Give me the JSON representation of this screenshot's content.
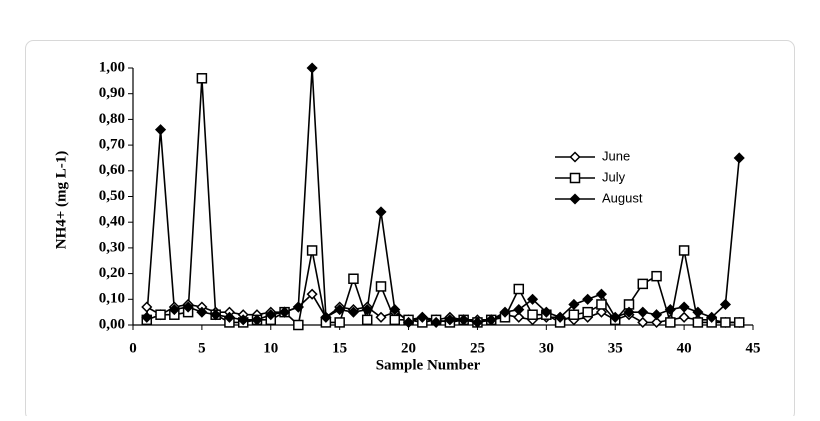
{
  "chart_data": {
    "type": "line",
    "xlabel": "Sample Number",
    "ylabel": "NH4+ (mg L-1)",
    "x": [
      1,
      2,
      3,
      4,
      5,
      6,
      7,
      8,
      9,
      10,
      11,
      12,
      13,
      14,
      15,
      16,
      17,
      18,
      19,
      20,
      21,
      22,
      23,
      24,
      25,
      26,
      27,
      28,
      29,
      30,
      31,
      32,
      33,
      34,
      35,
      36,
      37,
      38,
      39,
      40,
      41,
      42,
      43,
      44
    ],
    "series": [
      {
        "name": "June",
        "color": "#000000",
        "marker": "diamond-open",
        "values": [
          0.07,
          0.04,
          0.07,
          0.08,
          0.07,
          0.05,
          0.05,
          0.04,
          0.04,
          0.05,
          0.05,
          0.07,
          0.12,
          0.03,
          0.07,
          0.06,
          0.07,
          0.03,
          0.05,
          0.02,
          0.03,
          0.02,
          0.03,
          0.02,
          0.02,
          0.02,
          0.04,
          0.03,
          0.02,
          0.03,
          0.03,
          0.02,
          0.03,
          0.05,
          0.02,
          0.04,
          0.01,
          0.01,
          0.02,
          0.03,
          0.02,
          0.02,
          0.01,
          0.01
        ]
      },
      {
        "name": "July",
        "color": "#000000",
        "marker": "square",
        "values": [
          0.02,
          0.04,
          0.04,
          0.05,
          0.96,
          0.04,
          0.01,
          0.01,
          0.02,
          0.02,
          0.05,
          0.0,
          0.29,
          0.01,
          0.01,
          0.18,
          0.02,
          0.15,
          0.02,
          0.02,
          0.01,
          0.02,
          0.01,
          0.02,
          0.01,
          0.02,
          0.03,
          0.14,
          0.04,
          0.04,
          0.01,
          0.04,
          0.05,
          0.08,
          0.02,
          0.08,
          0.16,
          0.19,
          0.01,
          0.29,
          0.01,
          0.01,
          0.01,
          0.01
        ]
      },
      {
        "name": "August",
        "color": "#000000",
        "marker": "diamond",
        "values": [
          0.03,
          0.76,
          0.06,
          0.07,
          0.05,
          0.04,
          0.03,
          0.02,
          0.02,
          0.04,
          0.05,
          0.07,
          1.0,
          0.03,
          0.06,
          0.05,
          0.06,
          0.44,
          0.06,
          0.01,
          0.03,
          0.01,
          0.02,
          0.02,
          0.01,
          0.02,
          0.05,
          0.06,
          0.1,
          0.05,
          0.03,
          0.08,
          0.1,
          0.12,
          0.03,
          0.05,
          0.05,
          0.04,
          0.06,
          0.07,
          0.05,
          0.03,
          0.08,
          0.65
        ]
      }
    ],
    "xlim": [
      0,
      45
    ],
    "xticks": [
      0,
      5,
      10,
      15,
      20,
      25,
      30,
      35,
      40,
      45
    ],
    "ylim": [
      0,
      1
    ],
    "yticks": [
      {
        "value": 0,
        "label": "0,00"
      },
      {
        "value": 0.1,
        "label": "0,10"
      },
      {
        "value": 0.2,
        "label": "0,20"
      },
      {
        "value": 0.3,
        "label": "0,30"
      },
      {
        "value": 0.4,
        "label": "0,40"
      },
      {
        "value": 0.5,
        "label": "0,50"
      },
      {
        "value": 0.6,
        "label": "0,60"
      },
      {
        "value": 0.7,
        "label": "0,70"
      },
      {
        "value": 0.8,
        "label": "0,80"
      },
      {
        "value": 0.9,
        "label": "0,90"
      },
      {
        "value": 1,
        "label": "1,00"
      }
    ],
    "grid": false,
    "legend": "upper right"
  }
}
